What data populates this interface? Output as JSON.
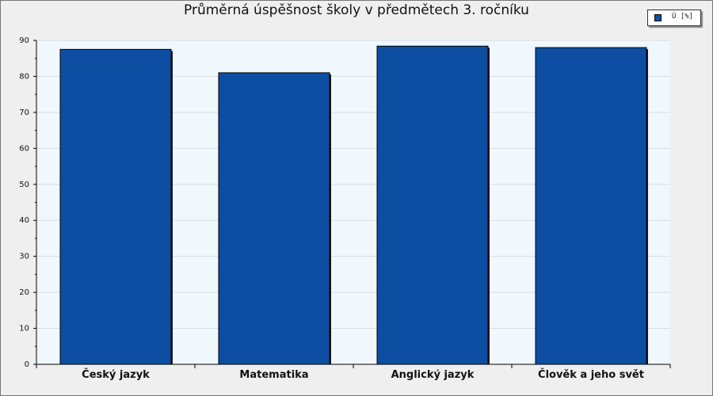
{
  "chart_data": {
    "type": "bar",
    "title": "Průměrná úspěšnost školy v předmětech 3. ročníku",
    "categories": [
      "Český jazyk",
      "Matematika",
      "Anglický jazyk",
      "Člověk a jeho svět"
    ],
    "series": [
      {
        "name": "Ú [%]",
        "values": [
          87.5,
          81.0,
          88.4,
          88.0
        ]
      }
    ],
    "xlabel": "",
    "ylabel": "",
    "ylim": [
      0,
      90
    ],
    "yticks": [
      0,
      10,
      20,
      30,
      40,
      50,
      60,
      70,
      80,
      90
    ],
    "grid": true,
    "legend_position": "top-right",
    "colors": {
      "bar": "#0d4ea3",
      "plot_background": "#f0f7fd",
      "grid": "#d6dde4"
    }
  }
}
